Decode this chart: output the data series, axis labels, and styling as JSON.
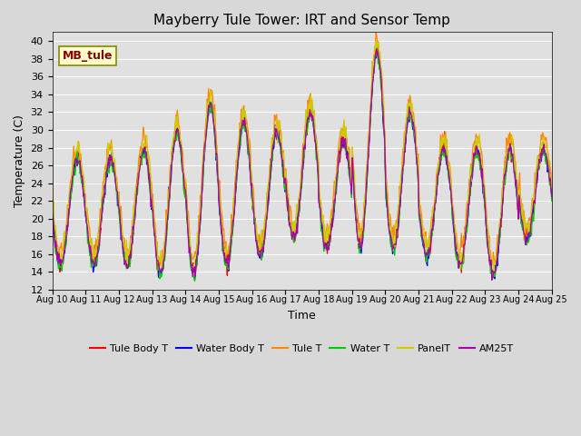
{
  "title": "Mayberry Tule Tower: IRT and Sensor Temp",
  "xlabel": "Time",
  "ylabel": "Temperature (C)",
  "ylim": [
    12,
    41
  ],
  "yticks": [
    12,
    14,
    16,
    18,
    20,
    22,
    24,
    26,
    28,
    30,
    32,
    34,
    36,
    38,
    40
  ],
  "xtick_labels": [
    "Aug 10",
    "Aug 11",
    "Aug 12",
    "Aug 13",
    "Aug 14",
    "Aug 15",
    "Aug 16",
    "Aug 17",
    "Aug 18",
    "Aug 19",
    "Aug 20",
    "Aug 21",
    "Aug 22",
    "Aug 23",
    "Aug 24",
    "Aug 25"
  ],
  "series_colors": {
    "Tule Body T": "#ff0000",
    "Water Body T": "#0000ff",
    "Tule T": "#ff8800",
    "Water T": "#00cc00",
    "PanelT": "#cccc00",
    "AM25T": "#aa00aa"
  },
  "legend_label": "MB_tule",
  "fig_bg_color": "#d8d8d8",
  "plot_bg_color": "#e0e0e0",
  "grid_color": "#ffffff",
  "figsize": [
    6.4,
    4.8
  ],
  "dpi": 100
}
